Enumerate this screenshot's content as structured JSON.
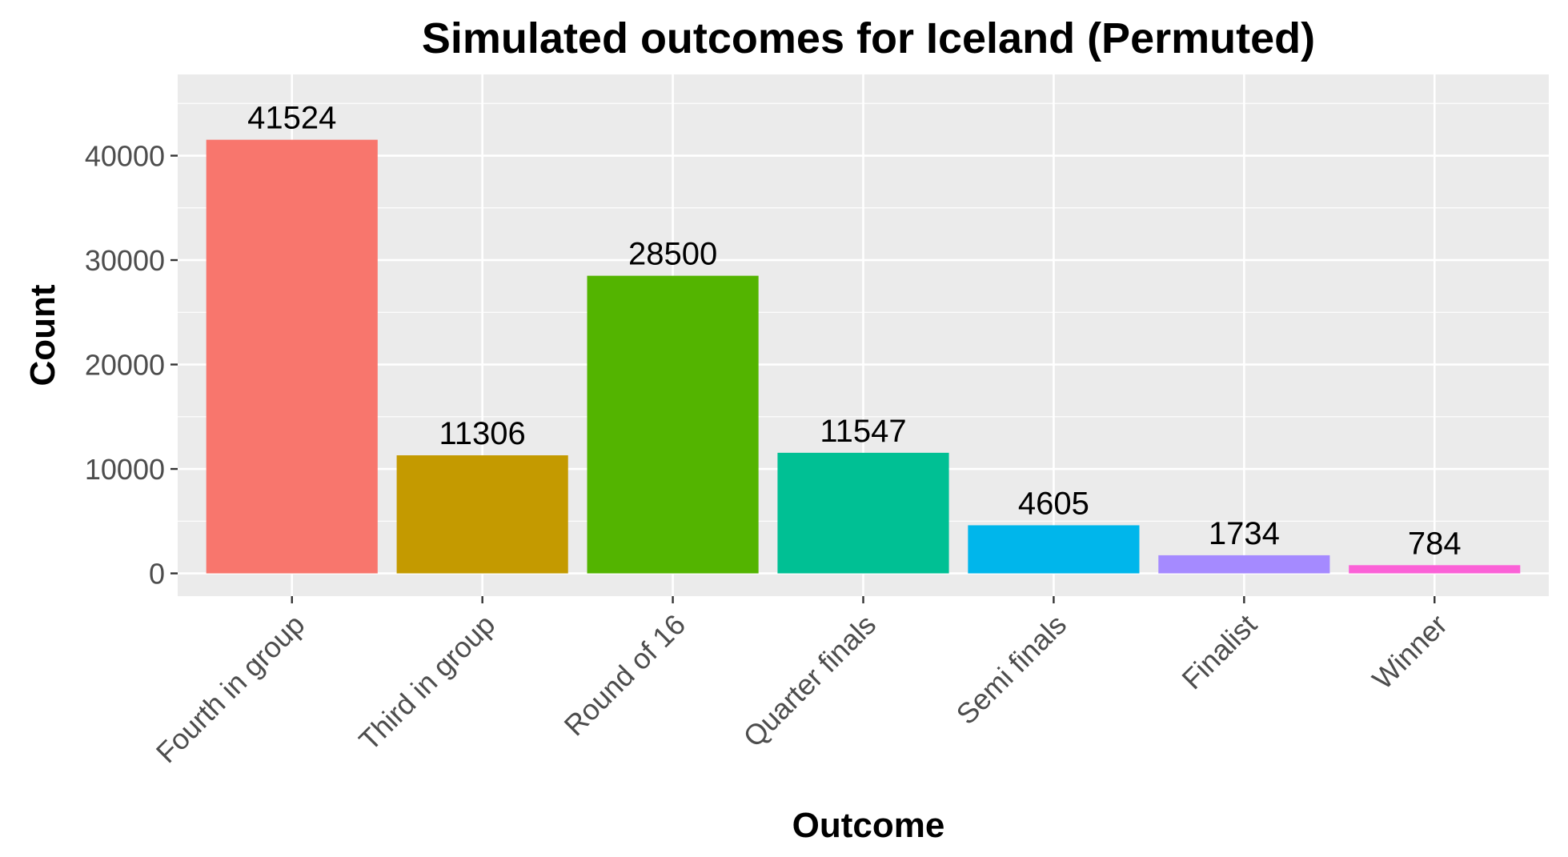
{
  "chart_data": {
    "type": "bar",
    "title": "Simulated outcomes for Iceland (Permuted)",
    "xlabel": "Outcome",
    "ylabel": "Count",
    "categories": [
      "Fourth in group",
      "Third in group",
      "Round of 16",
      "Quarter finals",
      "Semi finals",
      "Finalist",
      "Winner"
    ],
    "values": [
      41524,
      11306,
      28500,
      11547,
      4605,
      1734,
      784
    ],
    "colors": [
      "#F8766D",
      "#C49A00",
      "#53B400",
      "#00C094",
      "#00B6EB",
      "#A58AFF",
      "#FB61D7"
    ],
    "yticks": [
      0,
      10000,
      20000,
      30000,
      40000
    ],
    "ylim": [
      -2180,
      47780
    ],
    "grid": true,
    "legend": "none"
  }
}
